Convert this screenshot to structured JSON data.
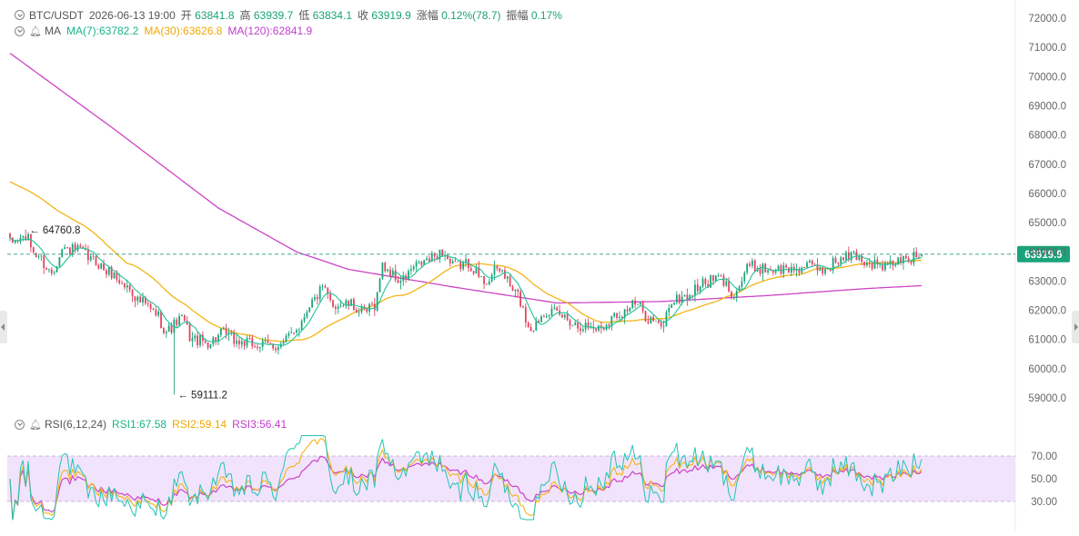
{
  "header": {
    "pair": "BTC/USDT",
    "datetime": "2026-06-13 19:00",
    "open_label": "开",
    "open": "63841.8",
    "high_label": "高",
    "high": "63939.7",
    "low_label": "低",
    "low": "63834.1",
    "close_label": "收",
    "close": "63919.9",
    "change_label": "涨幅",
    "change": "0.12%(78.7)",
    "amplitude_label": "振幅",
    "amplitude": "0.17%"
  },
  "ma_legend": {
    "label": "MA",
    "ma7": "MA(7):63782.2",
    "ma30": "MA(30):63626.8",
    "ma120": "MA(120):62841.9"
  },
  "rsi_legend": {
    "label": "RSI(6,12,24)",
    "rsi1": "RSI1:67.58",
    "rsi2": "RSI2:59.14",
    "rsi3": "RSI3:56.41"
  },
  "colors": {
    "up": "#1aa37a",
    "down": "#e0445e",
    "ma7": "#22c39a",
    "ma30": "#f3b418",
    "ma120": "#cc44c6",
    "rsi1": "#22c3b6",
    "rsi2": "#f3b418",
    "rsi3": "#cc44c6",
    "rsi_band": "#f1e3fb",
    "last_price_line": "#2b9a82",
    "last_price_tag": "#1aa37a"
  },
  "chart_data": [
    {
      "type": "candlestick",
      "interval": "1h",
      "y_ticks": [
        "72000.0",
        "71000.0",
        "70000.0",
        "69000.0",
        "68000.0",
        "67000.0",
        "66000.0",
        "65000.0",
        "64000.0",
        "63000.0",
        "62000.0",
        "61000.0",
        "60000.0",
        "59000.0"
      ],
      "ylim": [
        58600,
        72200
      ],
      "last_price": "63919.9",
      "annotations": {
        "max_label": "64760.8",
        "max": 64760.8,
        "min_label": "59111.2",
        "min": 59111.2
      },
      "close_anchors": [
        [
          0,
          64300
        ],
        [
          6,
          64500
        ],
        [
          10,
          63900
        ],
        [
          16,
          63300
        ],
        [
          20,
          64100
        ],
        [
          26,
          64050
        ],
        [
          32,
          63700
        ],
        [
          38,
          63300
        ],
        [
          45,
          62800
        ],
        [
          50,
          62300
        ],
        [
          56,
          61900
        ],
        [
          60,
          61300
        ],
        [
          66,
          61700
        ],
        [
          70,
          61000
        ],
        [
          76,
          60900
        ],
        [
          82,
          61200
        ],
        [
          88,
          60900
        ],
        [
          96,
          60800
        ],
        [
          104,
          60800
        ],
        [
          110,
          61400
        ],
        [
          116,
          62300
        ],
        [
          120,
          62700
        ],
        [
          124,
          62200
        ],
        [
          130,
          62200
        ],
        [
          136,
          61900
        ],
        [
          140,
          62200
        ],
        [
          143,
          63500
        ],
        [
          150,
          63000
        ],
        [
          156,
          63500
        ],
        [
          160,
          63700
        ],
        [
          166,
          64000
        ],
        [
          170,
          63500
        ],
        [
          176,
          63600
        ],
        [
          182,
          63000
        ],
        [
          188,
          63400
        ],
        [
          194,
          62600
        ],
        [
          200,
          61400
        ],
        [
          206,
          62000
        ],
        [
          212,
          61800
        ],
        [
          218,
          61500
        ],
        [
          226,
          61400
        ],
        [
          234,
          61900
        ],
        [
          240,
          62200
        ],
        [
          246,
          61700
        ],
        [
          250,
          61400
        ],
        [
          254,
          62300
        ],
        [
          260,
          62500
        ],
        [
          266,
          62900
        ],
        [
          272,
          63100
        ],
        [
          278,
          62600
        ],
        [
          284,
          63500
        ],
        [
          292,
          63400
        ],
        [
          300,
          63400
        ],
        [
          306,
          63500
        ],
        [
          312,
          63400
        ],
        [
          318,
          63700
        ],
        [
          324,
          63900
        ],
        [
          330,
          63600
        ],
        [
          336,
          63500
        ],
        [
          342,
          63700
        ],
        [
          346,
          63780
        ],
        [
          350,
          63920
        ]
      ],
      "ma_series": [
        {
          "name": "MA(7)",
          "value": 63782.2
        },
        {
          "name": "MA(30)",
          "value": 63626.8,
          "start": 66400
        },
        {
          "name": "MA(120)",
          "value": 62841.9,
          "start": 70800
        }
      ]
    },
    {
      "type": "line",
      "name": "RSI(6,12,24)",
      "y_ticks": [
        "70.00",
        "50.00",
        "30.00"
      ],
      "ylim": [
        20,
        85
      ],
      "band": [
        30,
        70
      ],
      "series": [
        {
          "name": "RSI1",
          "last": 67.58
        },
        {
          "name": "RSI2",
          "last": 59.14
        },
        {
          "name": "RSI3",
          "last": 56.41
        }
      ]
    }
  ]
}
